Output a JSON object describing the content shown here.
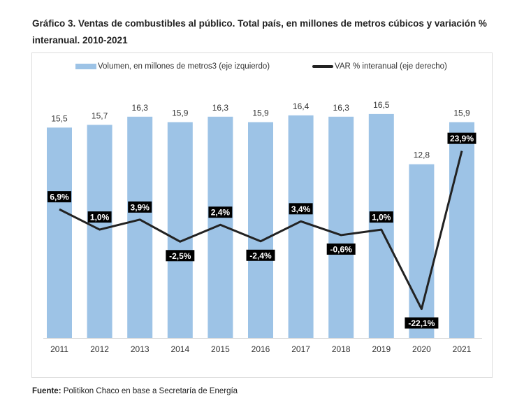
{
  "chart_data": {
    "type": "bar+line",
    "title": "Gráfico 3. Ventas de combustibles al público. Total país, en millones de metros cúbicos y variación % interanual. 2010-2021",
    "categories": [
      "2011",
      "2012",
      "2013",
      "2014",
      "2015",
      "2016",
      "2017",
      "2018",
      "2019",
      "2020",
      "2021"
    ],
    "series": [
      {
        "name": "Volumen, en millones de metros3 (eje izquierdo)",
        "type": "bar",
        "axis": "left",
        "color": "#9dc3e6",
        "values": [
          15.5,
          15.7,
          16.3,
          15.9,
          16.3,
          15.9,
          16.4,
          16.3,
          16.5,
          12.8,
          15.9
        ],
        "labels": [
          "15,5",
          "15,7",
          "16,3",
          "15,9",
          "16,3",
          "15,9",
          "16,4",
          "16,3",
          "16,5",
          "12,8",
          "15,9"
        ]
      },
      {
        "name": "VAR % interanual (eje derecho)",
        "type": "line",
        "axis": "right",
        "color": "#222222",
        "values": [
          6.9,
          1.0,
          3.9,
          -2.5,
          2.4,
          -2.4,
          3.4,
          -0.6,
          1.0,
          -22.1,
          23.9
        ],
        "labels": [
          "6,9%",
          "1,0%",
          "3,9%",
          "-2,5%",
          "2,4%",
          "-2,4%",
          "3,4%",
          "-0,6%",
          "1,0%",
          "-22,1%",
          "23,9%"
        ]
      }
    ],
    "legend": "top",
    "grid": false
  },
  "source_label": "Fuente:",
  "source_text": "Politikon Chaco en base a Secretaría de Energía"
}
